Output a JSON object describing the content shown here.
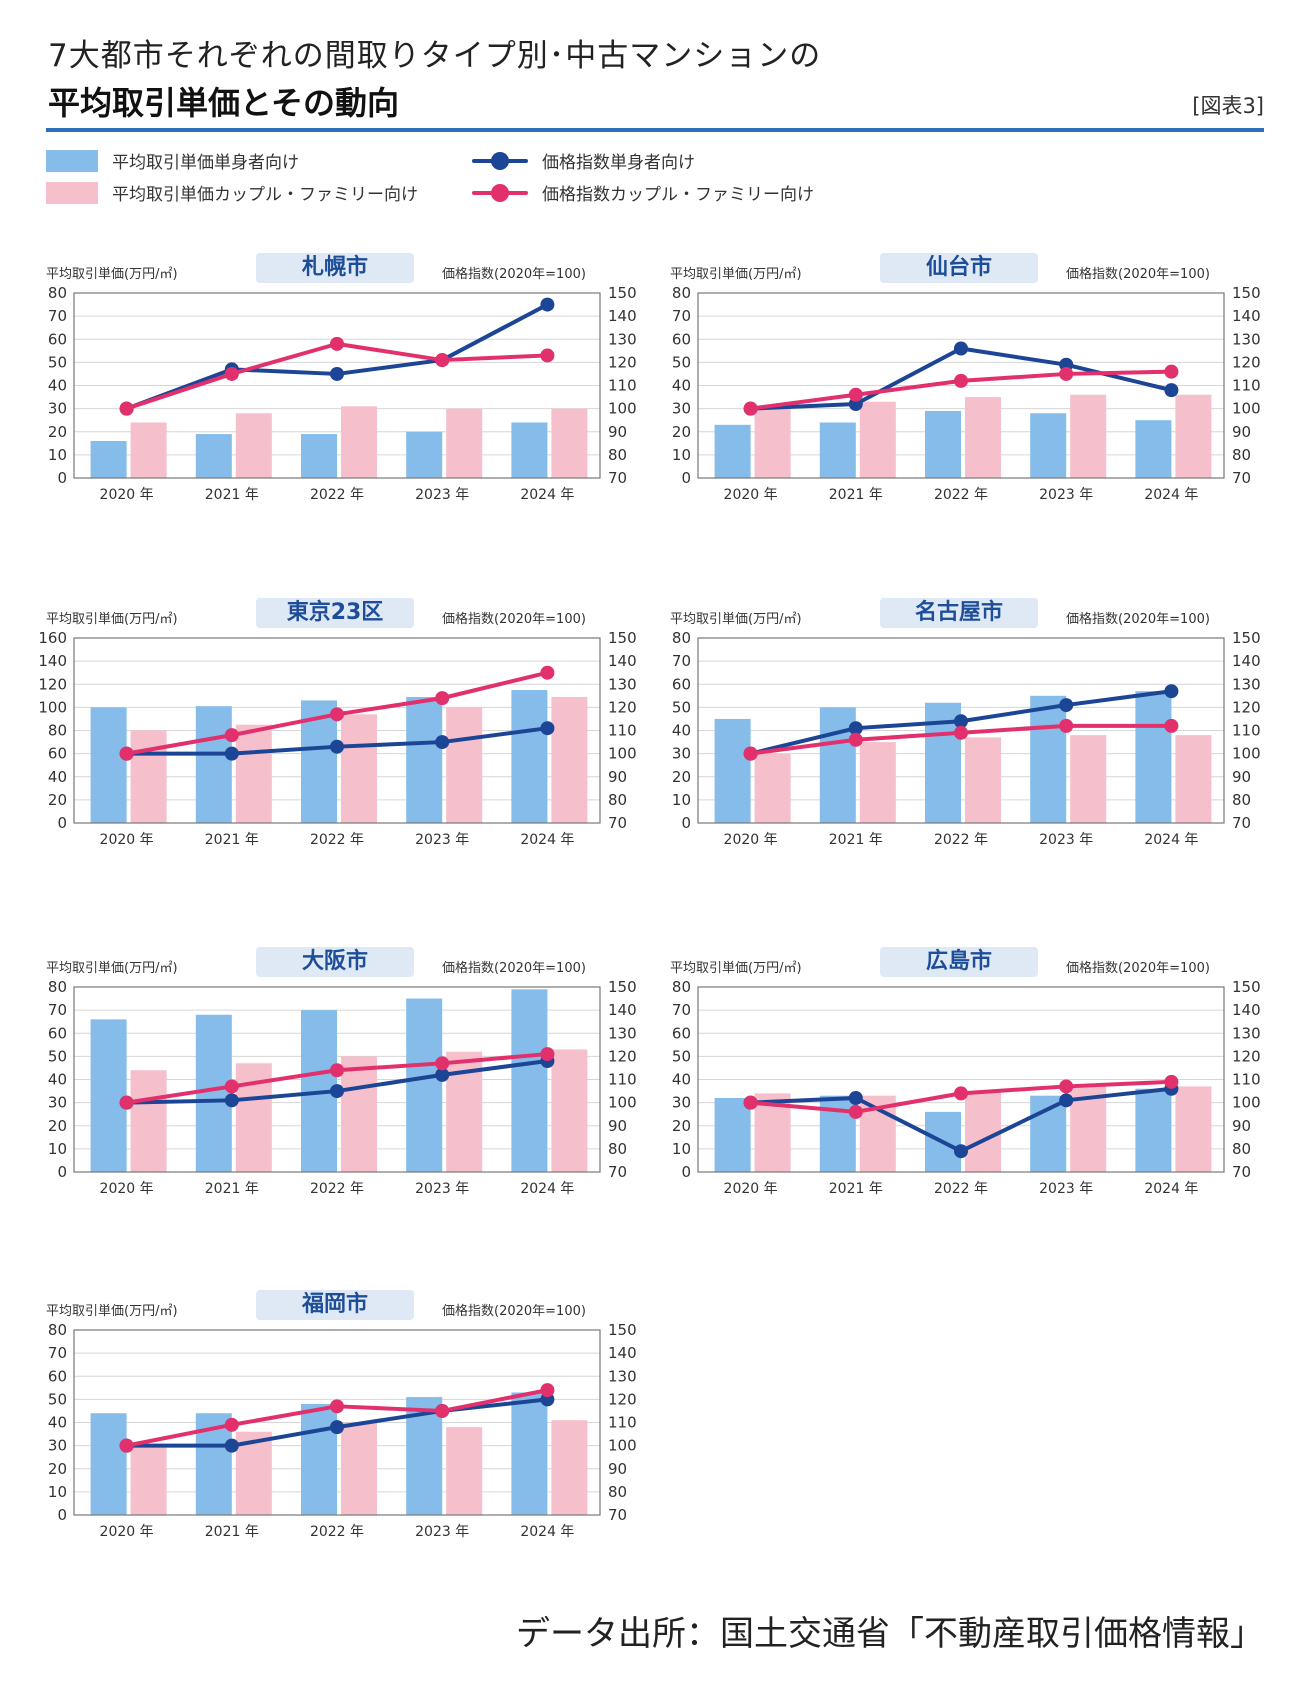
{
  "header": {
    "title_line1": "7大都市それぞれの間取りタイプ別･中古マンションの",
    "title_line2": "平均取引単価とその動向",
    "figure_tag": "[図表3]"
  },
  "legend": {
    "single_bar": "平均取引単価単身者向け",
    "family_bar": "平均取引単価カップル・ファミリー向け",
    "single_line": "価格指数単身者向け",
    "family_line": "価格指数カップル・ファミリー向け"
  },
  "colors": {
    "single_bar": "#86bce9",
    "family_bar": "#f6bfcc",
    "single_line": "#1c4595",
    "family_line": "#e1306c",
    "accent_rule": "#2e6fbd",
    "tag_bg": "#dfe9f5",
    "tag_text": "#1f4e99"
  },
  "axis_labels": {
    "left": "平均取引単価(万円/㎡)",
    "right": "価格指数(2020年=100)"
  },
  "footer": {
    "source": "データ出所：国土交通省「不動産取引価格情報」"
  },
  "chart_data": [
    {
      "type": "bar",
      "city": "札幌市",
      "categories": [
        "2020 年",
        "2021 年",
        "2022 年",
        "2023 年",
        "2024 年"
      ],
      "ylim": [
        0,
        80
      ],
      "yticks": [
        0,
        10,
        20,
        30,
        40,
        50,
        60,
        70,
        80
      ],
      "y2lim": [
        70,
        150
      ],
      "y2ticks": [
        70,
        80,
        90,
        100,
        110,
        120,
        130,
        140,
        150
      ],
      "series": [
        {
          "name": "平均取引単価単身者向け",
          "type": "bar",
          "axis": "left",
          "values": [
            16,
            19,
            19,
            20,
            24
          ]
        },
        {
          "name": "平均取引単価カップル・ファミリー向け",
          "type": "bar",
          "axis": "left",
          "values": [
            24,
            28,
            31,
            30,
            30
          ]
        },
        {
          "name": "価格指数単身者向け",
          "type": "line",
          "axis": "right",
          "values": [
            100,
            117,
            115,
            121,
            145
          ]
        },
        {
          "name": "価格指数カップル・ファミリー向け",
          "type": "line",
          "axis": "right",
          "values": [
            100,
            115,
            128,
            121,
            123
          ]
        }
      ]
    },
    {
      "type": "bar",
      "city": "仙台市",
      "categories": [
        "2020 年",
        "2021 年",
        "2022 年",
        "2023 年",
        "2024 年"
      ],
      "ylim": [
        0,
        80
      ],
      "yticks": [
        0,
        10,
        20,
        30,
        40,
        50,
        60,
        70,
        80
      ],
      "y2lim": [
        70,
        150
      ],
      "y2ticks": [
        70,
        80,
        90,
        100,
        110,
        120,
        130,
        140,
        150
      ],
      "series": [
        {
          "name": "平均取引単価単身者向け",
          "type": "bar",
          "axis": "left",
          "values": [
            23,
            24,
            29,
            28,
            25
          ]
        },
        {
          "name": "平均取引単価カップル・ファミリー向け",
          "type": "bar",
          "axis": "left",
          "values": [
            30,
            33,
            35,
            36,
            36
          ]
        },
        {
          "name": "価格指数単身者向け",
          "type": "line",
          "axis": "right",
          "values": [
            100,
            102,
            126,
            119,
            108
          ]
        },
        {
          "name": "価格指数カップル・ファミリー向け",
          "type": "line",
          "axis": "right",
          "values": [
            100,
            106,
            112,
            115,
            116
          ]
        }
      ]
    },
    {
      "type": "bar",
      "city": "東京23区",
      "categories": [
        "2020 年",
        "2021 年",
        "2022 年",
        "2023 年",
        "2024 年"
      ],
      "ylim": [
        0,
        160
      ],
      "yticks": [
        0,
        20,
        40,
        60,
        80,
        100,
        120,
        140,
        160
      ],
      "y2lim": [
        70,
        150
      ],
      "y2ticks": [
        70,
        80,
        90,
        100,
        110,
        120,
        130,
        140,
        150
      ],
      "series": [
        {
          "name": "平均取引単価単身者向け",
          "type": "bar",
          "axis": "left",
          "values": [
            100,
            101,
            106,
            109,
            115
          ]
        },
        {
          "name": "平均取引単価カップル・ファミリー向け",
          "type": "bar",
          "axis": "left",
          "values": [
            80,
            85,
            94,
            100,
            109
          ]
        },
        {
          "name": "価格指数単身者向け",
          "type": "line",
          "axis": "right",
          "values": [
            100,
            100,
            103,
            105,
            111
          ]
        },
        {
          "name": "価格指数カップル・ファミリー向け",
          "type": "line",
          "axis": "right",
          "values": [
            100,
            108,
            117,
            124,
            135
          ]
        }
      ]
    },
    {
      "type": "bar",
      "city": "名古屋市",
      "categories": [
        "2020 年",
        "2021 年",
        "2022 年",
        "2023 年",
        "2024 年"
      ],
      "ylim": [
        0,
        80
      ],
      "yticks": [
        0,
        10,
        20,
        30,
        40,
        50,
        60,
        70,
        80
      ],
      "y2lim": [
        70,
        150
      ],
      "y2ticks": [
        70,
        80,
        90,
        100,
        110,
        120,
        130,
        140,
        150
      ],
      "series": [
        {
          "name": "平均取引単価単身者向け",
          "type": "bar",
          "axis": "left",
          "values": [
            45,
            50,
            52,
            55,
            57
          ]
        },
        {
          "name": "平均取引単価カップル・ファミリー向け",
          "type": "bar",
          "axis": "left",
          "values": [
            30,
            35,
            37,
            38,
            38
          ]
        },
        {
          "name": "価格指数単身者向け",
          "type": "line",
          "axis": "right",
          "values": [
            100,
            111,
            114,
            121,
            127
          ]
        },
        {
          "name": "価格指数カップル・ファミリー向け",
          "type": "line",
          "axis": "right",
          "values": [
            100,
            106,
            109,
            112,
            112
          ]
        }
      ]
    },
    {
      "type": "bar",
      "city": "大阪市",
      "categories": [
        "2020 年",
        "2021 年",
        "2022 年",
        "2023 年",
        "2024 年"
      ],
      "ylim": [
        0,
        80
      ],
      "yticks": [
        0,
        10,
        20,
        30,
        40,
        50,
        60,
        70,
        80
      ],
      "y2lim": [
        70,
        150
      ],
      "y2ticks": [
        70,
        80,
        90,
        100,
        110,
        120,
        130,
        140,
        150
      ],
      "series": [
        {
          "name": "平均取引単価単身者向け",
          "type": "bar",
          "axis": "left",
          "values": [
            66,
            68,
            70,
            75,
            79
          ]
        },
        {
          "name": "平均取引単価カップル・ファミリー向け",
          "type": "bar",
          "axis": "left",
          "values": [
            44,
            47,
            50,
            52,
            53
          ]
        },
        {
          "name": "価格指数単身者向け",
          "type": "line",
          "axis": "right",
          "values": [
            100,
            101,
            105,
            112,
            118
          ]
        },
        {
          "name": "価格指数カップル・ファミリー向け",
          "type": "line",
          "axis": "right",
          "values": [
            100,
            107,
            114,
            117,
            121
          ]
        }
      ]
    },
    {
      "type": "bar",
      "city": "広島市",
      "categories": [
        "2020 年",
        "2021 年",
        "2022 年",
        "2023 年",
        "2024 年"
      ],
      "ylim": [
        0,
        80
      ],
      "yticks": [
        0,
        10,
        20,
        30,
        40,
        50,
        60,
        70,
        80
      ],
      "y2lim": [
        70,
        150
      ],
      "y2ticks": [
        70,
        80,
        90,
        100,
        110,
        120,
        130,
        140,
        150
      ],
      "series": [
        {
          "name": "平均取引単価単身者向け",
          "type": "bar",
          "axis": "left",
          "values": [
            32,
            33,
            26,
            33,
            36
          ]
        },
        {
          "name": "平均取引単価カップル・ファミリー向け",
          "type": "bar",
          "axis": "left",
          "values": [
            34,
            33,
            35,
            37,
            37
          ]
        },
        {
          "name": "価格指数単身者向け",
          "type": "line",
          "axis": "right",
          "values": [
            100,
            102,
            79,
            101,
            106
          ]
        },
        {
          "name": "価格指数カップル・ファミリー向け",
          "type": "line",
          "axis": "right",
          "values": [
            100,
            96,
            104,
            107,
            109
          ]
        }
      ]
    },
    {
      "type": "bar",
      "city": "福岡市",
      "categories": [
        "2020 年",
        "2021 年",
        "2022 年",
        "2023 年",
        "2024 年"
      ],
      "ylim": [
        0,
        80
      ],
      "yticks": [
        0,
        10,
        20,
        30,
        40,
        50,
        60,
        70,
        80
      ],
      "y2lim": [
        70,
        150
      ],
      "y2ticks": [
        70,
        80,
        90,
        100,
        110,
        120,
        130,
        140,
        150
      ],
      "series": [
        {
          "name": "平均取引単価単身者向け",
          "type": "bar",
          "axis": "left",
          "values": [
            44,
            44,
            48,
            51,
            53
          ]
        },
        {
          "name": "平均取引単価カップル・ファミリー向け",
          "type": "bar",
          "axis": "left",
          "values": [
            30,
            36,
            40,
            38,
            41
          ]
        },
        {
          "name": "価格指数単身者向け",
          "type": "line",
          "axis": "right",
          "values": [
            100,
            100,
            108,
            115,
            120
          ]
        },
        {
          "name": "価格指数カップル・ファミリー向け",
          "type": "line",
          "axis": "right",
          "values": [
            100,
            109,
            117,
            115,
            124
          ]
        }
      ]
    }
  ]
}
